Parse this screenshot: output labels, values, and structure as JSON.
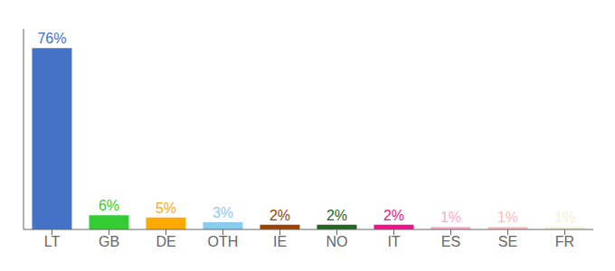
{
  "chart_data": {
    "type": "bar",
    "categories": [
      "LT",
      "GB",
      "DE",
      "OTH",
      "IE",
      "NO",
      "IT",
      "ES",
      "SE",
      "FR"
    ],
    "values": [
      76,
      6,
      5,
      3,
      2,
      2,
      2,
      1,
      1,
      1
    ],
    "value_labels": [
      "76%",
      "6%",
      "5%",
      "3%",
      "2%",
      "2%",
      "2%",
      "1%",
      "1%",
      "1%"
    ],
    "colors": [
      "#4472c4",
      "#33cc33",
      "#ffaa00",
      "#88ccee",
      "#994400",
      "#226622",
      "#ee1188",
      "#ffaacc",
      "#ffbbbb",
      "#f5f0d8"
    ],
    "ylim": [
      0,
      84
    ],
    "grid": false,
    "data_labels": true,
    "tick_labels": "x"
  }
}
